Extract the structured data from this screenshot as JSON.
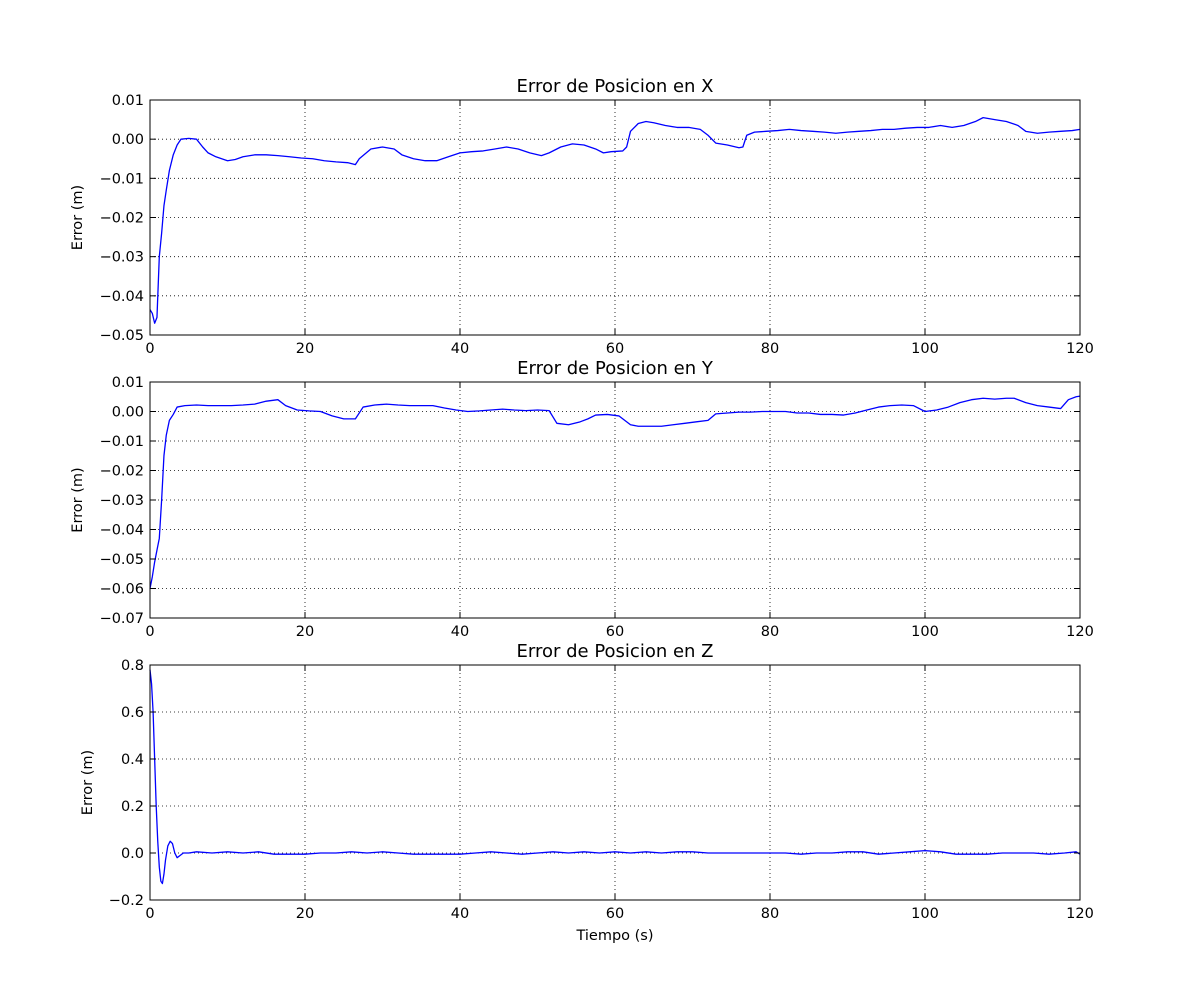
{
  "figure": {
    "background": "#ffffff",
    "line_color": "#0000ff",
    "grid": true,
    "grid_style": "dotted",
    "xlabel": "Tiempo (s)"
  },
  "chart_data": [
    {
      "type": "line",
      "title": "Error de Posicion en X",
      "xlabel": "",
      "ylabel": "Error (m)",
      "xlim": [
        0,
        120
      ],
      "ylim": [
        -0.05,
        0.01
      ],
      "xticks": [
        0,
        20,
        40,
        60,
        80,
        100,
        120
      ],
      "yticks": [
        -0.05,
        -0.04,
        -0.03,
        -0.02,
        -0.01,
        0.0,
        0.01
      ],
      "xtick_labels": [
        "0",
        "20",
        "40",
        "60",
        "80",
        "100",
        "120"
      ],
      "ytick_labels": [
        "−0.05",
        "−0.04",
        "−0.03",
        "−0.02",
        "−0.01",
        "0.00",
        "0.01"
      ],
      "grid": true,
      "series": [
        {
          "color": "#0000ff",
          "x": [
            0,
            0.3,
            0.6,
            0.9,
            1.2,
            1.5,
            1.8,
            2.1,
            2.5,
            3.0,
            3.5,
            4.0,
            5.0,
            6.0,
            6.8,
            7.5,
            8.5,
            10,
            11,
            12,
            13.5,
            15,
            16.5,
            18,
            19.5,
            21,
            22.5,
            24,
            25.5,
            26.5,
            27,
            28.5,
            30,
            31.5,
            32.5,
            34,
            35.5,
            37,
            38.5,
            40,
            41.5,
            43,
            44.5,
            46,
            47.5,
            49,
            50.5,
            51.5,
            53,
            54.5,
            56,
            57.5,
            58.5,
            59.5,
            61,
            61.5,
            62,
            63,
            64,
            65,
            66.5,
            68,
            69.5,
            71,
            72,
            73,
            74.5,
            76,
            76.5,
            77,
            78,
            79.5,
            81,
            82.5,
            84,
            85.5,
            87,
            88.5,
            90,
            91.5,
            93,
            94.5,
            96,
            97.5,
            99,
            100.5,
            102,
            103.5,
            105,
            106.5,
            107.5,
            109,
            110.5,
            112,
            113,
            114.5,
            116,
            117.5,
            119,
            120
          ],
          "y": [
            -0.0435,
            -0.0445,
            -0.047,
            -0.0455,
            -0.03,
            -0.024,
            -0.017,
            -0.013,
            -0.008,
            -0.004,
            -0.0015,
            0.0,
            0.0002,
            0.0,
            -0.002,
            -0.0035,
            -0.0045,
            -0.0055,
            -0.0052,
            -0.0045,
            -0.004,
            -0.004,
            -0.0042,
            -0.0045,
            -0.0048,
            -0.005,
            -0.0055,
            -0.0058,
            -0.006,
            -0.0065,
            -0.005,
            -0.0025,
            -0.002,
            -0.0025,
            -0.004,
            -0.005,
            -0.0055,
            -0.0055,
            -0.0045,
            -0.0035,
            -0.0032,
            -0.003,
            -0.0025,
            -0.002,
            -0.0025,
            -0.0035,
            -0.0042,
            -0.0035,
            -0.002,
            -0.0012,
            -0.0015,
            -0.0025,
            -0.0035,
            -0.0032,
            -0.003,
            -0.002,
            0.002,
            0.004,
            0.0045,
            0.0042,
            0.0035,
            0.003,
            0.003,
            0.0025,
            0.001,
            -0.001,
            -0.0015,
            -0.0022,
            -0.002,
            0.001,
            0.0018,
            0.002,
            0.0022,
            0.0025,
            0.0022,
            0.002,
            0.0018,
            0.0015,
            0.0018,
            0.002,
            0.0022,
            0.0025,
            0.0025,
            0.0028,
            0.003,
            0.003,
            0.0035,
            0.003,
            0.0035,
            0.0045,
            0.0055,
            0.005,
            0.0045,
            0.0035,
            0.002,
            0.0015,
            0.0018,
            0.002,
            0.0022,
            0.0025
          ]
        }
      ]
    },
    {
      "type": "line",
      "title": "Error de Posicion en Y",
      "xlabel": "",
      "ylabel": "Error (m)",
      "xlim": [
        0,
        120
      ],
      "ylim": [
        -0.07,
        0.01
      ],
      "xticks": [
        0,
        20,
        40,
        60,
        80,
        100,
        120
      ],
      "yticks": [
        -0.07,
        -0.06,
        -0.05,
        -0.04,
        -0.03,
        -0.02,
        -0.01,
        0.0,
        0.01
      ],
      "xtick_labels": [
        "0",
        "20",
        "40",
        "60",
        "80",
        "100",
        "120"
      ],
      "ytick_labels": [
        "−0.07",
        "−0.06",
        "−0.05",
        "−0.04",
        "−0.03",
        "−0.02",
        "−0.01",
        "0.00",
        "0.01"
      ],
      "grid": true,
      "series": [
        {
          "color": "#0000ff",
          "x": [
            0,
            0.3,
            0.6,
            0.9,
            1.2,
            1.5,
            1.8,
            2.1,
            2.5,
            3.0,
            3.5,
            4.5,
            6,
            7.5,
            9,
            10.5,
            12,
            13.5,
            15,
            16.5,
            17.5,
            19,
            20.5,
            22,
            23.5,
            25,
            26.5,
            27.5,
            29,
            30.5,
            32,
            33.5,
            35,
            36.5,
            38,
            39.5,
            41,
            42.5,
            44,
            45.5,
            47,
            48.5,
            50,
            51.5,
            52.5,
            54,
            55.5,
            56.5,
            57.5,
            59,
            60.5,
            62,
            63,
            64.5,
            66,
            67.5,
            69,
            70.5,
            72,
            73,
            74.5,
            76,
            77.5,
            79,
            80.5,
            82,
            83.5,
            85,
            86.5,
            88,
            89.5,
            91,
            92.5,
            94,
            95.5,
            97,
            98.5,
            100,
            101.5,
            103,
            104.5,
            106,
            107.5,
            109,
            110.5,
            111.5,
            113,
            114.5,
            116,
            117.5,
            118.5,
            119.5,
            120
          ],
          "y": [
            -0.06,
            -0.056,
            -0.051,
            -0.047,
            -0.043,
            -0.03,
            -0.015,
            -0.008,
            -0.003,
            -0.001,
            0.0015,
            0.002,
            0.0022,
            0.002,
            0.002,
            0.002,
            0.0022,
            0.0025,
            0.0035,
            0.004,
            0.002,
            0.0005,
            0.0002,
            0.0,
            -0.0015,
            -0.0025,
            -0.0025,
            0.0015,
            0.0022,
            0.0025,
            0.0022,
            0.002,
            0.002,
            0.002,
            0.0012,
            0.0005,
            0.0,
            0.0002,
            0.0005,
            0.0008,
            0.0005,
            0.0003,
            0.0005,
            0.0003,
            -0.004,
            -0.0045,
            -0.0035,
            -0.0025,
            -0.0012,
            -0.001,
            -0.0015,
            -0.0045,
            -0.005,
            -0.005,
            -0.005,
            -0.0045,
            -0.004,
            -0.0035,
            -0.003,
            -0.0008,
            -0.0005,
            -0.0002,
            -0.0002,
            0.0,
            0.0,
            0.0,
            -0.0005,
            -0.0005,
            -0.001,
            -0.001,
            -0.0012,
            -0.0005,
            0.0005,
            0.0015,
            0.002,
            0.0022,
            0.002,
            0.0,
            0.0005,
            0.0015,
            0.003,
            0.004,
            0.0045,
            0.0042,
            0.0045,
            0.0045,
            0.003,
            0.002,
            0.0015,
            0.001,
            0.004,
            0.005,
            0.0052
          ]
        }
      ]
    },
    {
      "type": "line",
      "title": "Error de Posicion en Z",
      "xlabel": "Tiempo (s)",
      "ylabel": "Error (m)",
      "xlim": [
        0,
        120
      ],
      "ylim": [
        -0.2,
        0.8
      ],
      "xticks": [
        0,
        20,
        40,
        60,
        80,
        100,
        120
      ],
      "yticks": [
        -0.2,
        0.0,
        0.2,
        0.4,
        0.6,
        0.8
      ],
      "xtick_labels": [
        "0",
        "20",
        "40",
        "60",
        "80",
        "100",
        "120"
      ],
      "ytick_labels": [
        "−0.2",
        "0.0",
        "0.2",
        "0.4",
        "0.6",
        "0.8"
      ],
      "grid": true,
      "series": [
        {
          "color": "#0000ff",
          "x": [
            0,
            0.2,
            0.4,
            0.6,
            0.8,
            1.0,
            1.2,
            1.4,
            1.6,
            1.8,
            2.0,
            2.3,
            2.6,
            2.9,
            3.2,
            3.5,
            3.9,
            4.3,
            5,
            6,
            8,
            10,
            12,
            14,
            16,
            18,
            20,
            22,
            24,
            26,
            28,
            30,
            32,
            34,
            36,
            38,
            40,
            42,
            44,
            46,
            48,
            50,
            52,
            54,
            56,
            58,
            60,
            62,
            64,
            66,
            68,
            70,
            72,
            74,
            76,
            78,
            80,
            82,
            84,
            86,
            88,
            90,
            92,
            94,
            96,
            98,
            100,
            102,
            104,
            106,
            108,
            110,
            112,
            114,
            116,
            118,
            119.5,
            120
          ],
          "y": [
            0.78,
            0.72,
            0.6,
            0.4,
            0.2,
            0.05,
            -0.06,
            -0.12,
            -0.13,
            -0.09,
            -0.03,
            0.03,
            0.05,
            0.04,
            0.0,
            -0.02,
            -0.01,
            0.0,
            0.0,
            0.005,
            0.0,
            0.005,
            0.0,
            0.005,
            -0.005,
            -0.005,
            -0.005,
            0.0,
            0.0,
            0.005,
            0.0,
            0.005,
            0.0,
            -0.005,
            -0.005,
            -0.005,
            -0.005,
            0.0,
            0.005,
            0.0,
            -0.005,
            0.0,
            0.005,
            0.0,
            0.005,
            0.0,
            0.005,
            0.0,
            0.005,
            0.0,
            0.005,
            0.005,
            0.0,
            0.0,
            0.0,
            0.0,
            0.0,
            0.0,
            -0.005,
            0.0,
            0.0,
            0.005,
            0.005,
            -0.005,
            0.0,
            0.005,
            0.01,
            0.005,
            -0.005,
            -0.005,
            -0.005,
            0.0,
            0.0,
            0.0,
            -0.005,
            0.0,
            0.005,
            -0.005
          ]
        }
      ]
    }
  ]
}
